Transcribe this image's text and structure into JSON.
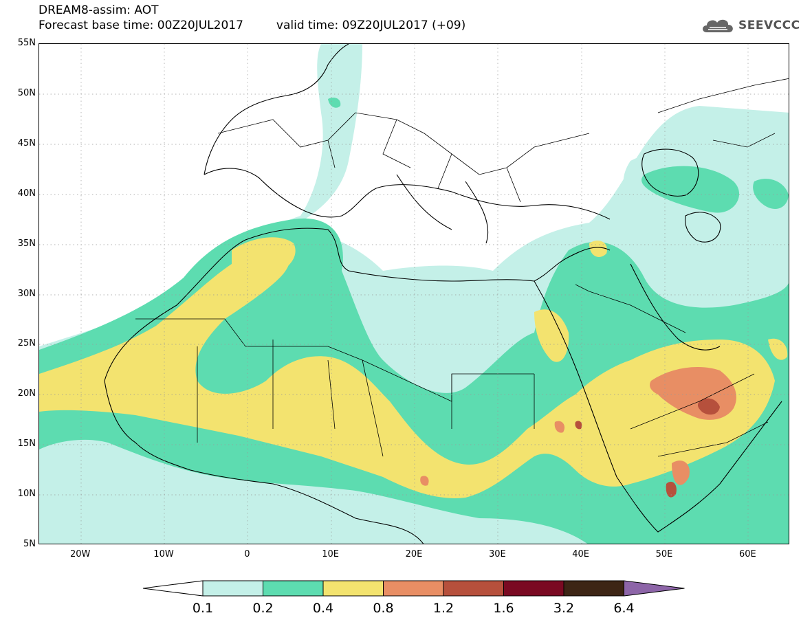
{
  "header": {
    "title": "DREAM8-assim: AOT",
    "base_time_label": "Forecast base time: 00Z20JUL2017",
    "valid_time_label": "valid time: 09Z20JUL2017 (+09)",
    "logo_text": "SEEVCCC",
    "logo_icon": "cloud-icon"
  },
  "map": {
    "lon_range": [
      -25,
      65
    ],
    "lat_range": [
      5,
      55
    ],
    "lat_ticks": [
      "55N",
      "50N",
      "45N",
      "40N",
      "35N",
      "30N",
      "25N",
      "20N",
      "15N",
      "10N",
      "5N"
    ],
    "lon_ticks": [
      "20W",
      "10W",
      "0",
      "10E",
      "20E",
      "30E",
      "40E",
      "50E",
      "60E"
    ]
  },
  "legend": {
    "levels": [
      "0.1",
      "0.2",
      "0.4",
      "0.8",
      "1.2",
      "1.6",
      "3.2",
      "6.4"
    ],
    "colors": [
      "#c4f0e8",
      "#5ddcb0",
      "#f3e36f",
      "#e88e64",
      "#b6503c",
      "#7a0a22",
      "#3d2515",
      "#8d65a8"
    ]
  }
}
